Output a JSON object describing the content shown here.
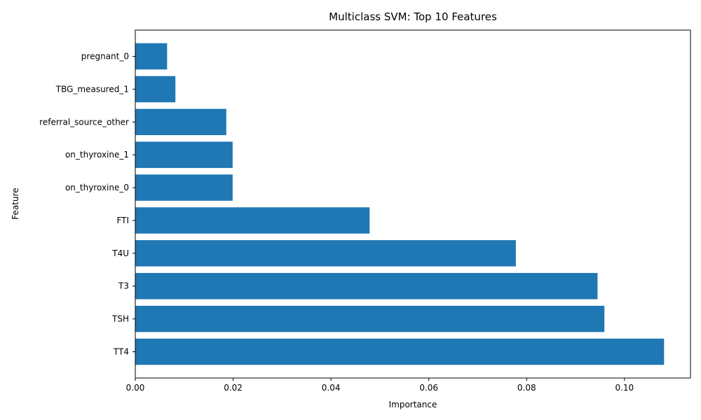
{
  "chart_data": {
    "type": "bar",
    "orientation": "horizontal",
    "title": "Multiclass SVM: Top 10 Features",
    "xlabel": "Importance",
    "ylabel": "Feature",
    "categories": [
      "TT4",
      "TSH",
      "T3",
      "T4U",
      "FTI",
      "on_thyroxine_0",
      "on_thyroxine_1",
      "referral_source_other",
      "TBG_measured_1",
      "pregnant_0"
    ],
    "values": [
      0.1081,
      0.0959,
      0.0945,
      0.0778,
      0.0479,
      0.0199,
      0.0199,
      0.0186,
      0.0082,
      0.0065
    ],
    "xlim": [
      0,
      0.1135
    ],
    "xticks": [
      0.0,
      0.02,
      0.04,
      0.06,
      0.08,
      0.1
    ],
    "xtick_labels": [
      "0.00",
      "0.02",
      "0.04",
      "0.06",
      "0.08",
      "0.10"
    ],
    "bar_color": "#1f77b4",
    "grid": false,
    "legend": "none"
  }
}
